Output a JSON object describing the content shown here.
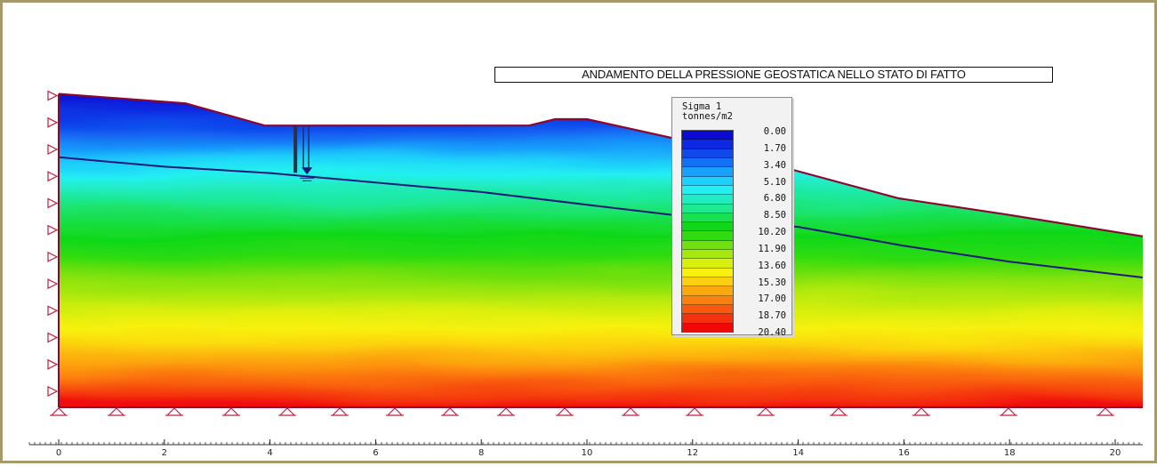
{
  "title": "ANDAMENTO DELLA PRESSIONE GEOSTATICA NELLO STATO DI FATTO",
  "legend": {
    "title": "Sigma 1",
    "unit": "tonnes/m2",
    "labels": [
      "0.00",
      "1.70",
      "3.40",
      "5.10",
      "6.80",
      "8.50",
      "10.20",
      "11.90",
      "13.60",
      "15.30",
      "17.00",
      "18.70",
      "20.40"
    ],
    "colors": [
      "#0a0ad2",
      "#0c28e0",
      "#1048ec",
      "#1470f4",
      "#18a0fa",
      "#1ed0fa",
      "#22f0f0",
      "#20ecc0",
      "#1ee890",
      "#18e050",
      "#10d818",
      "#30dc10",
      "#70e010",
      "#a8e810",
      "#d8ef10",
      "#f8f010",
      "#fcd010",
      "#fca810",
      "#fc8010",
      "#f85810",
      "#f43010",
      "#f00808"
    ]
  },
  "diagram": {
    "x_axis": {
      "min": 0,
      "max": 20.6,
      "labels": [
        "0",
        "2",
        "4",
        "6",
        "8",
        "10",
        "12",
        "14",
        "16",
        "18",
        "20"
      ]
    },
    "ground_profile": [
      [
        0,
        9.9
      ],
      [
        2.4,
        9.6
      ],
      [
        3.9,
        8.9
      ],
      [
        8.9,
        8.9
      ],
      [
        9.4,
        9.1
      ],
      [
        10.0,
        9.1
      ],
      [
        11.9,
        8.4
      ],
      [
        13.9,
        7.5
      ],
      [
        15.9,
        6.6
      ],
      [
        17.9,
        6.1
      ],
      [
        20.6,
        5.4
      ]
    ],
    "water_table": [
      [
        0,
        7.9
      ],
      [
        2.0,
        7.6
      ],
      [
        4.0,
        7.4
      ],
      [
        6.0,
        7.1
      ],
      [
        8.0,
        6.8
      ],
      [
        10.0,
        6.4
      ],
      [
        12.0,
        6.0
      ],
      [
        14.0,
        5.7
      ],
      [
        16.0,
        5.1
      ],
      [
        18.0,
        4.6
      ],
      [
        20.6,
        4.1
      ]
    ],
    "piezometer_x": 4.7,
    "sigma_max": 20.4,
    "base_elevation": 0,
    "colors": {
      "profile": "#8a0830",
      "water": "#1a1a78",
      "support": "#c02040",
      "base": "#8a0830"
    }
  }
}
